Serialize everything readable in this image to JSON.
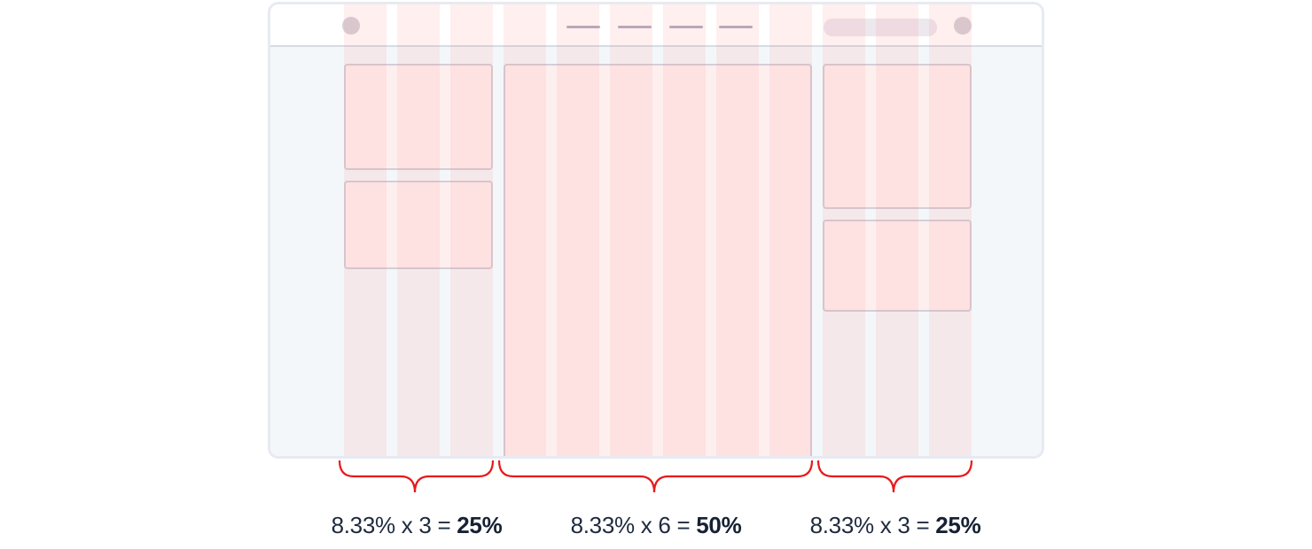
{
  "labels": [
    {
      "expr": "8.33% x 3 = ",
      "result": "25%"
    },
    {
      "expr": "8.33% x 6 = ",
      "result": "50%"
    },
    {
      "expr": "8.33% x 3 = ",
      "result": "25%"
    }
  ],
  "colors": {
    "brace": "#e8191c",
    "text": "#1e2a3e",
    "column_overlay": "#ff7878",
    "window_border": "#e7ebf1",
    "window_bg": "#f4f7fa",
    "card_border": "#d3cfd7"
  },
  "grid": {
    "total_columns": 12,
    "groups": [
      3,
      6,
      3
    ]
  }
}
